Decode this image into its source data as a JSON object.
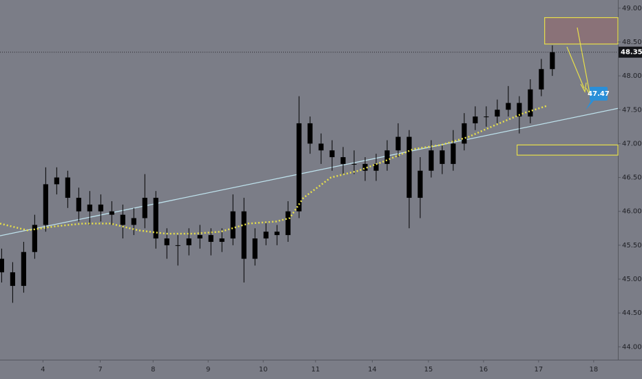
{
  "chart_data": {
    "type": "candlestick",
    "color": "#000000",
    "x": [
      -0.75,
      -0.55,
      -0.35,
      -0.15,
      0.05,
      0.25,
      0.45,
      0.65,
      0.85,
      1.05,
      1.25,
      1.45,
      1.65,
      1.85,
      2.05,
      2.25,
      2.45,
      2.65,
      2.85,
      3.05,
      3.25,
      3.45,
      3.65,
      3.85,
      4.05,
      4.25,
      4.45,
      4.65,
      4.85,
      5.05,
      5.25,
      5.45,
      5.65,
      5.85,
      6.05,
      6.25,
      6.45,
      6.65,
      6.85,
      7.05,
      7.25,
      7.45,
      7.65,
      7.85,
      8.05,
      8.25,
      8.45,
      8.65,
      8.85,
      9.05,
      9.25
    ],
    "open": [
      45.3,
      45.1,
      44.9,
      45.4,
      45.8,
      46.4,
      46.5,
      46.2,
      46.0,
      46.1,
      46.0,
      45.95,
      45.8,
      45.9,
      46.2,
      45.6,
      45.5,
      45.5,
      45.6,
      45.65,
      45.55,
      45.6,
      46.0,
      45.3,
      45.6,
      45.7,
      45.65,
      46.0,
      47.3,
      47.0,
      46.9,
      46.8,
      46.7,
      46.7,
      46.6,
      46.7,
      46.9,
      47.1,
      46.2,
      46.6,
      46.9,
      46.7,
      47.0,
      47.3,
      47.4,
      47.4,
      47.5,
      47.6,
      47.4,
      47.8,
      48.1
    ],
    "high": [
      45.45,
      45.25,
      45.55,
      45.95,
      46.65,
      46.65,
      46.6,
      46.35,
      46.3,
      46.25,
      46.15,
      46.1,
      46.05,
      46.55,
      46.3,
      45.75,
      45.65,
      45.75,
      45.8,
      45.75,
      45.75,
      46.25,
      46.2,
      45.75,
      45.85,
      45.8,
      46.15,
      47.7,
      47.4,
      47.15,
      47.05,
      46.95,
      46.9,
      46.8,
      46.85,
      47.05,
      47.3,
      47.2,
      46.8,
      47.05,
      47.0,
      47.2,
      47.45,
      47.55,
      47.55,
      47.65,
      47.85,
      47.7,
      47.95,
      48.25,
      48.45
    ],
    "low": [
      44.95,
      44.65,
      44.8,
      45.3,
      45.7,
      46.25,
      46.05,
      45.85,
      45.8,
      45.85,
      45.8,
      45.6,
      45.65,
      45.75,
      45.45,
      45.3,
      45.2,
      45.35,
      45.45,
      45.35,
      45.4,
      45.5,
      44.95,
      45.2,
      45.5,
      45.5,
      45.55,
      45.9,
      46.85,
      46.7,
      46.6,
      46.55,
      46.55,
      46.45,
      46.45,
      46.6,
      46.8,
      45.75,
      45.9,
      46.5,
      46.55,
      46.6,
      46.9,
      47.2,
      47.25,
      47.3,
      47.4,
      47.15,
      47.3,
      47.7,
      48.0
    ],
    "close": [
      45.1,
      44.9,
      45.4,
      45.8,
      46.4,
      46.5,
      46.2,
      46.0,
      46.1,
      46.0,
      45.95,
      45.8,
      45.9,
      46.2,
      45.6,
      45.5,
      45.5,
      45.6,
      45.65,
      45.55,
      45.6,
      46.0,
      45.3,
      45.6,
      45.7,
      45.65,
      46.0,
      47.3,
      47.0,
      46.9,
      46.8,
      46.7,
      46.7,
      46.6,
      46.7,
      46.9,
      47.1,
      46.2,
      46.6,
      46.9,
      46.7,
      47.0,
      47.3,
      47.4,
      47.4,
      47.5,
      47.6,
      47.4,
      47.8,
      48.1,
      48.35
    ],
    "moving_average": {
      "color": "#e8e04a",
      "x": [
        -0.78,
        -0.28,
        0.23,
        0.73,
        1.23,
        1.73,
        2.23,
        2.73,
        3.23,
        3.73,
        4.23,
        4.48,
        4.73,
        5.23,
        5.73,
        6.23,
        6.73,
        7.23,
        7.73,
        8.23,
        8.73,
        9.16
      ],
      "values": [
        45.82,
        45.72,
        45.78,
        45.82,
        45.82,
        45.72,
        45.67,
        45.67,
        45.7,
        45.82,
        45.85,
        45.9,
        46.2,
        46.5,
        46.6,
        46.75,
        46.92,
        46.98,
        47.1,
        47.28,
        47.45,
        47.56
      ]
    },
    "trend_line": {
      "color": "#bfe3ee",
      "x": [
        -0.78,
        10.44
      ],
      "values": [
        45.64,
        47.52
      ]
    },
    "last_price": 48.35,
    "callout": 47.47,
    "zones": [
      {
        "x": [
          9.11,
          10.44
        ],
        "y": [
          48.47,
          48.86
        ],
        "color": "#8a7278",
        "border": "#e8e04a"
      },
      {
        "x": [
          8.61,
          10.44
        ],
        "y": [
          46.83,
          46.98
        ],
        "color": "#6e7183",
        "border": "#e8e04a"
      }
    ],
    "xlim": [
      -0.78,
      10.44
    ],
    "ylim": [
      43.81,
      49.12
    ],
    "xticks": [
      {
        "value": 0,
        "label": "4"
      },
      {
        "value": 1.04,
        "label": "7"
      },
      {
        "value": 2,
        "label": "8"
      },
      {
        "value": 3,
        "label": "9"
      },
      {
        "value": 4,
        "label": "10"
      },
      {
        "value": 4.95,
        "label": "11"
      },
      {
        "value": 5.98,
        "label": "14"
      },
      {
        "value": 7,
        "label": "15"
      },
      {
        "value": 8,
        "label": "16"
      },
      {
        "value": 9,
        "label": "17"
      },
      {
        "value": 10,
        "label": "18"
      }
    ],
    "yticks": [
      {
        "value": 49,
        "label": "49.00"
      },
      {
        "value": 48.5,
        "label": "48.50"
      },
      {
        "value": 48,
        "label": "48.00"
      },
      {
        "value": 47.5,
        "label": "47.50"
      },
      {
        "value": 47,
        "label": "47.00"
      },
      {
        "value": 46.5,
        "label": "46.50"
      },
      {
        "value": 46,
        "label": "46.00"
      },
      {
        "value": 45.5,
        "label": "45.50"
      },
      {
        "value": 45,
        "label": "45.00"
      },
      {
        "value": 44.5,
        "label": "44.50"
      },
      {
        "value": 44,
        "label": "44.00"
      }
    ]
  }
}
